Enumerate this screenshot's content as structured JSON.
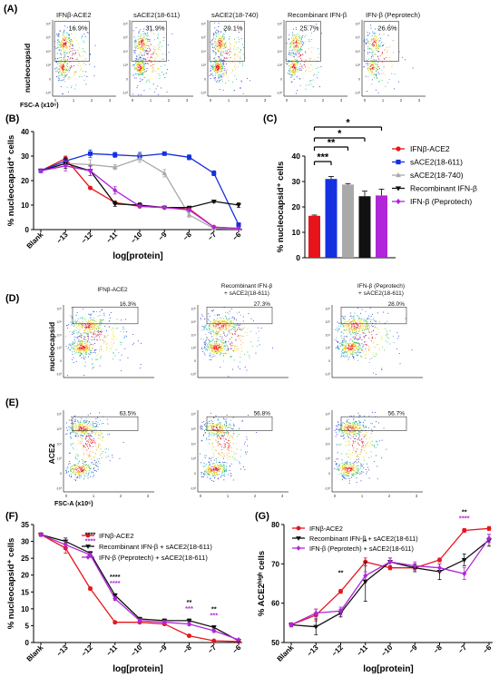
{
  "panels": {
    "A": {
      "label": "(A)",
      "y_label": "nucleocapsid",
      "x_label": "FSC-A (x10⁶)",
      "plots": [
        {
          "title": "IFNβ-ACE2",
          "pct": "16.9%"
        },
        {
          "title": "sACE2(18-611)",
          "pct": "31.9%"
        },
        {
          "title": "sACE2(18-740)",
          "pct": "29.1%"
        },
        {
          "title": "Recombinant IFN-β",
          "pct": "25.7%"
        },
        {
          "title": "IFN-β (Peprotech)",
          "pct": "26.6%"
        }
      ],
      "x_ticks": [
        "0",
        "1",
        "2",
        "3"
      ]
    },
    "D": {
      "label": "(D)",
      "y_label": "nucleocapsid",
      "titles": [
        "IFNβ-ACE2",
        "Recombinant IFN-β\n+ sACE2(18-611)",
        "IFN-β (Peprotech)\n+ sACE2(18-611)"
      ],
      "title_lines": [
        [
          "IFNβ-ACE2"
        ],
        [
          "Recombinant IFN-β",
          "+ sACE2(18-611)"
        ],
        [
          "IFN-β (Peprotech)",
          "+ sACE2(18-611)"
        ]
      ],
      "pcts": [
        "16.3%",
        "27.3%",
        "28.0%"
      ]
    },
    "E": {
      "label": "(E)",
      "y_label": "ACE2",
      "x_label": "FSC-A (x10⁶)",
      "pcts": [
        "63.5%",
        "56.8%",
        "56.7%"
      ],
      "x_ticks": [
        "0",
        "1",
        "2",
        "3"
      ]
    }
  },
  "chart_data": [
    {
      "panel": "B",
      "label": "(B)",
      "type": "line",
      "ylabel": "% nucleocapsid⁺ cells",
      "xlabel": "log[protein]",
      "x_categories": [
        "Blank",
        "-13",
        "-12",
        "-11",
        "-10",
        "-9",
        "-8",
        "-7",
        "-6"
      ],
      "ylim": [
        0,
        40
      ],
      "yticks": [
        0,
        10,
        20,
        30,
        40
      ],
      "series": [
        {
          "name": "IFNβ-ACE2",
          "color": "#e8141b",
          "marker": "circle",
          "values": [
            24,
            29,
            17,
            11,
            9.5,
            9,
            8.5,
            1,
            0.5
          ],
          "err": [
            0.5,
            1,
            0.5,
            0.5,
            0.5,
            0.5,
            0.5,
            0.3,
            0.2
          ]
        },
        {
          "name": "sACE2(18-611)",
          "color": "#1430e0",
          "marker": "square",
          "values": [
            24,
            28,
            31,
            30.5,
            30,
            31,
            29.5,
            23,
            2
          ],
          "err": [
            0.5,
            1.5,
            1.5,
            1,
            1.5,
            0.5,
            1,
            1,
            0.5
          ]
        },
        {
          "name": "sACE2(18-740)",
          "color": "#a9a9a9",
          "marker": "triangle",
          "values": [
            24,
            27,
            26.5,
            25.5,
            29,
            23,
            6,
            0.5,
            0.3
          ],
          "err": [
            0.5,
            1,
            2,
            1,
            1.5,
            1.5,
            1,
            0.2,
            0.2
          ]
        },
        {
          "name": "Recombinant IFN-β",
          "color": "#111111",
          "marker": "tridown",
          "values": [
            24,
            27,
            24,
            10.5,
            10,
            9,
            9,
            11.5,
            10
          ],
          "err": [
            0.5,
            2,
            2,
            1,
            1,
            0.5,
            0.5,
            0.5,
            1
          ]
        },
        {
          "name": "IFN-β (Peprotech)",
          "color": "#b026d8",
          "marker": "diamond",
          "values": [
            24,
            26,
            24,
            16,
            9.5,
            9,
            8,
            1,
            0.5
          ],
          "err": [
            0.5,
            2,
            2,
            1.5,
            0.5,
            0.5,
            0.5,
            0.2,
            0.2
          ]
        }
      ]
    },
    {
      "panel": "C",
      "label": "(C)",
      "type": "bar",
      "ylabel": "% nucleocapsid⁺ cells",
      "categories": [
        "IFNβ-ACE2",
        "sACE2(18-611)",
        "sACE2(18-740)",
        "Recombinant IFN-β",
        "IFN-β (Peprotech)"
      ],
      "values": [
        16.5,
        31,
        28.8,
        24.2,
        24.5
      ],
      "err": [
        0.3,
        1,
        0.4,
        2,
        2.5
      ],
      "colors": [
        "#e8141b",
        "#1430e0",
        "#a9a9a9",
        "#111111",
        "#b026d8"
      ],
      "ylim": [
        0,
        40
      ],
      "yticks": [
        0,
        10,
        20,
        30,
        40
      ],
      "significance": [
        {
          "to": 1,
          "stars": "***"
        },
        {
          "to": 2,
          "stars": "**"
        },
        {
          "to": 3,
          "stars": "*"
        },
        {
          "to": 4,
          "stars": "*"
        }
      ]
    },
    {
      "panel": "F",
      "label": "(F)",
      "type": "line",
      "ylabel": "% nucleocapsid⁺ cells",
      "xlabel": "log[protein]",
      "x_categories": [
        "Blank",
        "-13",
        "-12",
        "-11",
        "-10",
        "-9",
        "-8",
        "-7",
        "-6"
      ],
      "ylim": [
        0,
        35
      ],
      "yticks": [
        0,
        5,
        10,
        15,
        20,
        25,
        30,
        35
      ],
      "series": [
        {
          "name": "IFNβ-ACE2",
          "color": "#e8141b",
          "marker": "circle",
          "values": [
            32,
            28,
            16,
            6,
            6,
            5.5,
            2,
            0.5,
            0.3
          ],
          "err": [
            0.5,
            1.5,
            0.5,
            0.3,
            0.3,
            0.3,
            0.3,
            0.2,
            0.1
          ]
        },
        {
          "name": "Recombinant IFN-β + sACE2(18-611)",
          "color": "#111111",
          "marker": "tridown",
          "values": [
            32,
            30,
            26.5,
            14,
            7,
            6.5,
            6.5,
            4.5,
            0.5
          ],
          "err": [
            0.5,
            1,
            0.5,
            0.5,
            0.5,
            0.5,
            0.5,
            0.5,
            0.2
          ]
        },
        {
          "name": "IFN-β (Peprotech) + sACE2(18-611)",
          "color": "#b026d8",
          "marker": "diamond",
          "values": [
            32,
            29,
            26,
            13,
            6.5,
            6,
            5.5,
            3.5,
            0.8
          ],
          "err": [
            0.5,
            1,
            0.5,
            0.5,
            0.5,
            0.5,
            0.5,
            0.5,
            0.2
          ]
        }
      ],
      "stars": [
        {
          "x": 2,
          "black": "****",
          "purple": "****"
        },
        {
          "x": 3,
          "black": "****",
          "purple": "****"
        },
        {
          "x": 6,
          "black": "**",
          "purple": "***"
        },
        {
          "x": 7,
          "black": "**",
          "purple": "***"
        }
      ]
    },
    {
      "panel": "G",
      "label": "(G)",
      "type": "line",
      "ylabel": "% ACE2ʰⁱᵍʰ cells",
      "xlabel": "log[protein]",
      "x_categories": [
        "Blank",
        "-13",
        "-12",
        "-11",
        "-10",
        "-9",
        "-8",
        "-7",
        "-6"
      ],
      "ylim": [
        50,
        80
      ],
      "yticks": [
        50,
        60,
        70,
        80
      ],
      "series": [
        {
          "name": "IFNβ-ACE2",
          "color": "#e8141b",
          "marker": "circle",
          "values": [
            54.5,
            57,
            63,
            70.5,
            69,
            69,
            71,
            78.5,
            79
          ],
          "err": [
            0.5,
            1.5,
            0.5,
            1,
            0.5,
            0.5,
            0.5,
            0.5,
            0.5
          ]
        },
        {
          "name": "Recombinant IFN-β + sACE2(18-611)",
          "color": "#111111",
          "marker": "tridown",
          "values": [
            54.5,
            54,
            57.5,
            65.5,
            70.5,
            69,
            68,
            71,
            76
          ],
          "err": [
            0.5,
            2,
            1,
            5,
            1,
            1,
            2,
            1.5,
            1.5
          ]
        },
        {
          "name": "IFN-β (Peprotech) + sACE2(18-611)",
          "color": "#b026d8",
          "marker": "diamond",
          "values": [
            54.5,
            57.5,
            58,
            67,
            70.5,
            69.5,
            69,
            67.5,
            76.5
          ],
          "err": [
            0.5,
            1,
            1,
            1,
            1,
            1,
            1,
            1.5,
            1
          ]
        }
      ],
      "stars": [
        {
          "x": 2,
          "black": "**",
          "purple": ""
        },
        {
          "x": 3,
          "black": "*",
          "purple": ""
        },
        {
          "x": 7,
          "black": "**",
          "purple": "****"
        }
      ]
    }
  ],
  "axis_minus": "−"
}
